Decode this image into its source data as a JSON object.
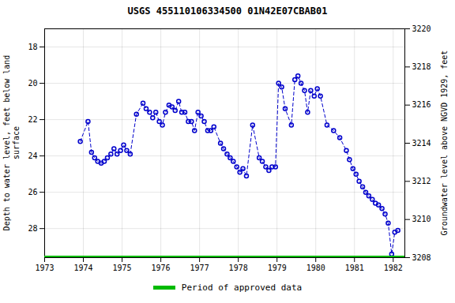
{
  "chart_data": {
    "type": "line",
    "title": "USGS 455110106334500 01N42E07CBAB01",
    "ylabel": "Depth to water level, feet below land\nsurface",
    "y2label": "Groundwater level above NGVD 1929, feet",
    "x": [
      1973.92,
      1974.12,
      1974.21,
      1974.29,
      1974.37,
      1974.46,
      1974.54,
      1974.62,
      1974.71,
      1974.79,
      1974.87,
      1974.96,
      1975.04,
      1975.12,
      1975.21,
      1975.37,
      1975.54,
      1975.62,
      1975.71,
      1975.79,
      1975.87,
      1975.96,
      1976.04,
      1976.12,
      1976.21,
      1976.29,
      1976.37,
      1976.46,
      1976.54,
      1976.62,
      1976.71,
      1976.79,
      1976.87,
      1976.96,
      1977.04,
      1977.12,
      1977.21,
      1977.29,
      1977.37,
      1977.54,
      1977.62,
      1977.71,
      1977.79,
      1977.87,
      1977.96,
      1978.04,
      1978.12,
      1978.21,
      1978.37,
      1978.54,
      1978.62,
      1978.71,
      1978.79,
      1978.87,
      1978.96,
      1979.04,
      1979.12,
      1979.21,
      1979.37,
      1979.46,
      1979.54,
      1979.62,
      1979.71,
      1979.79,
      1979.87,
      1979.96,
      1980.04,
      1980.12,
      1980.29,
      1980.46,
      1980.62,
      1980.79,
      1980.87,
      1980.96,
      1981.04,
      1981.12,
      1981.21,
      1981.29,
      1981.37,
      1981.46,
      1981.54,
      1981.62,
      1981.71,
      1981.79,
      1981.87,
      1981.96,
      1982.04,
      1982.12
    ],
    "series": [
      {
        "color": "#0000cc",
        "marker": "circle",
        "line_style": "dashed",
        "values": [
          23.2,
          22.1,
          23.8,
          24.1,
          24.3,
          24.4,
          24.3,
          24.1,
          23.9,
          23.6,
          23.9,
          23.7,
          23.4,
          23.7,
          23.9,
          21.7,
          21.1,
          21.4,
          21.6,
          21.9,
          21.6,
          22.1,
          22.3,
          21.6,
          21.2,
          21.3,
          21.5,
          21.0,
          21.6,
          21.6,
          22.1,
          22.1,
          22.6,
          21.6,
          21.8,
          22.1,
          22.6,
          22.6,
          22.4,
          23.3,
          23.6,
          23.9,
          24.1,
          24.3,
          24.6,
          24.9,
          24.7,
          25.1,
          22.3,
          24.1,
          24.3,
          24.6,
          24.8,
          24.6,
          24.6,
          20.0,
          20.2,
          21.4,
          22.3,
          19.8,
          19.6,
          20.0,
          20.4,
          21.6,
          20.4,
          20.7,
          20.3,
          20.7,
          22.3,
          22.6,
          23.0,
          23.7,
          24.2,
          24.7,
          25.0,
          25.4,
          25.7,
          26.0,
          26.2,
          26.4,
          26.6,
          26.7,
          26.9,
          27.2,
          27.7,
          29.4,
          28.2,
          28.1
        ]
      },
      {
        "name": "Period of approved data",
        "color": "#00bb00",
        "line_style": "solid",
        "x": [
          1973.0,
          1982.3
        ],
        "values": [
          29.6,
          29.6
        ]
      }
    ],
    "xlim": [
      1973.0,
      1982.3
    ],
    "xticks": [
      1973,
      1974,
      1975,
      1976,
      1977,
      1978,
      1979,
      1980,
      1981,
      1982
    ],
    "ylim": [
      29.6,
      17.0
    ],
    "yticks": [
      18,
      20,
      22,
      24,
      26,
      28
    ],
    "y2lim": [
      3208.0,
      3220.0
    ],
    "y2ticks": [
      3208,
      3210,
      3212,
      3214,
      3216,
      3218,
      3220
    ],
    "grid": true,
    "legend": "bottom"
  }
}
